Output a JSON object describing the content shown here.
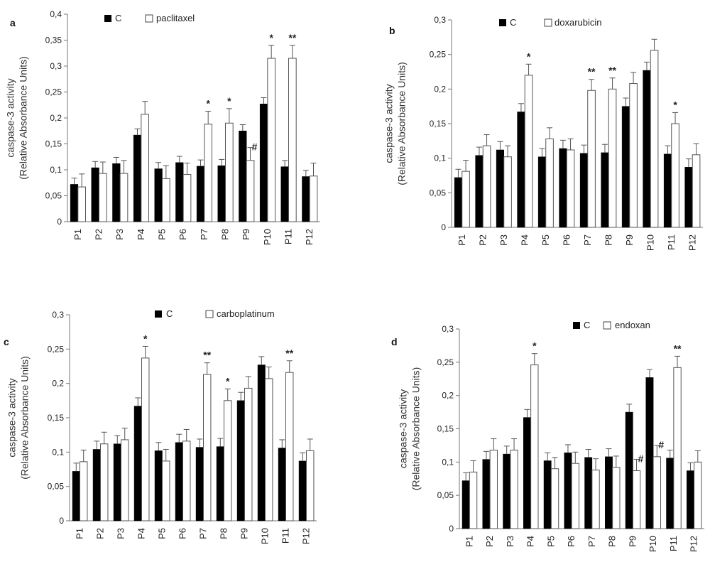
{
  "chart_data": [
    {
      "panel": "a",
      "type": "bar",
      "ylabel_line1": "caspase-3 activity",
      "ylabel_line2": "(Relative Absorbance Units)",
      "ylim": [
        0,
        0.4
      ],
      "yticks": [
        "0",
        "0,05",
        "0,1",
        "0,15",
        "0,2",
        "0,25",
        "0,3",
        "0,35",
        "0,4"
      ],
      "categories": [
        "P1",
        "P2",
        "P3",
        "P4",
        "P5",
        "P6",
        "P7",
        "P8",
        "P9",
        "P10",
        "P11",
        "P12"
      ],
      "series": [
        {
          "name": "C",
          "color": "#000000",
          "values": [
            0.072,
            0.104,
            0.112,
            0.167,
            0.102,
            0.114,
            0.107,
            0.108,
            0.175,
            0.227,
            0.106,
            0.087
          ],
          "errors": [
            0.012,
            0.012,
            0.012,
            0.012,
            0.012,
            0.012,
            0.012,
            0.012,
            0.012,
            0.012,
            0.012,
            0.012
          ]
        },
        {
          "name": "paclitaxel",
          "color": "#ffffff",
          "values": [
            0.067,
            0.093,
            0.093,
            0.207,
            0.083,
            0.091,
            0.188,
            0.19,
            0.118,
            0.315,
            0.315,
            0.088
          ],
          "errors": [
            0.025,
            0.022,
            0.025,
            0.025,
            0.025,
            0.022,
            0.025,
            0.028,
            0.025,
            0.025,
            0.025,
            0.025
          ]
        }
      ],
      "annotations": [
        {
          "category": "P7",
          "series": "paclitaxel",
          "text": "*"
        },
        {
          "category": "P8",
          "series": "paclitaxel",
          "text": "*"
        },
        {
          "category": "P9",
          "series": "paclitaxel",
          "text": "#"
        },
        {
          "category": "P10",
          "series": "paclitaxel",
          "text": "*"
        },
        {
          "category": "P11",
          "series": "paclitaxel",
          "text": "**"
        }
      ]
    },
    {
      "panel": "b",
      "type": "bar",
      "ylabel_line1": "caspase-3 activity",
      "ylabel_line2": "(Relative Absorbance Units)",
      "ylim": [
        0,
        0.3
      ],
      "yticks": [
        "0",
        "0,05",
        "0,1",
        "0,15",
        "0,2",
        "0,25",
        "0,3"
      ],
      "categories": [
        "P1",
        "P2",
        "P3",
        "P4",
        "P5",
        "P6",
        "P7",
        "P8",
        "P9",
        "P10",
        "P11",
        "P12"
      ],
      "series": [
        {
          "name": "C",
          "color": "#000000",
          "values": [
            0.072,
            0.104,
            0.112,
            0.167,
            0.102,
            0.114,
            0.107,
            0.108,
            0.175,
            0.227,
            0.106,
            0.087
          ],
          "errors": [
            0.012,
            0.012,
            0.012,
            0.012,
            0.012,
            0.012,
            0.012,
            0.012,
            0.012,
            0.012,
            0.012,
            0.012
          ]
        },
        {
          "name": "doxarubicin",
          "color": "#ffffff",
          "values": [
            0.081,
            0.118,
            0.102,
            0.22,
            0.128,
            0.112,
            0.198,
            0.2,
            0.208,
            0.256,
            0.15,
            0.105
          ],
          "errors": [
            0.016,
            0.016,
            0.016,
            0.016,
            0.016,
            0.016,
            0.016,
            0.016,
            0.016,
            0.016,
            0.016,
            0.016
          ]
        }
      ],
      "annotations": [
        {
          "category": "P4",
          "series": "doxarubicin",
          "text": "*"
        },
        {
          "category": "P7",
          "series": "doxarubicin",
          "text": "**"
        },
        {
          "category": "P8",
          "series": "doxarubicin",
          "text": "**"
        },
        {
          "category": "P11",
          "series": "doxarubicin",
          "text": "*"
        }
      ]
    },
    {
      "panel": "c",
      "type": "bar",
      "ylabel_line1": "caspase-3 activity",
      "ylabel_line2": "(Relative Absorbance Units)",
      "ylim": [
        0,
        0.3
      ],
      "yticks": [
        "0",
        "0,05",
        "0,1",
        "0,15",
        "0,2",
        "0,25",
        "0,3"
      ],
      "categories": [
        "P1",
        "P2",
        "P3",
        "P4",
        "P5",
        "P6",
        "P7",
        "P8",
        "P9",
        "P10",
        "P11",
        "P12"
      ],
      "series": [
        {
          "name": "C",
          "color": "#000000",
          "values": [
            0.072,
            0.104,
            0.112,
            0.167,
            0.102,
            0.114,
            0.107,
            0.108,
            0.175,
            0.227,
            0.106,
            0.087
          ],
          "errors": [
            0.012,
            0.012,
            0.012,
            0.012,
            0.012,
            0.012,
            0.012,
            0.012,
            0.012,
            0.012,
            0.012,
            0.012
          ]
        },
        {
          "name": "carboplatinum",
          "color": "#ffffff",
          "values": [
            0.086,
            0.112,
            0.118,
            0.237,
            0.087,
            0.116,
            0.213,
            0.175,
            0.193,
            0.207,
            0.216,
            0.102
          ],
          "errors": [
            0.017,
            0.017,
            0.017,
            0.017,
            0.017,
            0.017,
            0.017,
            0.017,
            0.017,
            0.017,
            0.017,
            0.017
          ]
        }
      ],
      "annotations": [
        {
          "category": "P4",
          "series": "carboplatinum",
          "text": "*"
        },
        {
          "category": "P7",
          "series": "carboplatinum",
          "text": "**"
        },
        {
          "category": "P8",
          "series": "carboplatinum",
          "text": "*"
        },
        {
          "category": "P11",
          "series": "carboplatinum",
          "text": "**"
        }
      ]
    },
    {
      "panel": "d",
      "type": "bar",
      "ylabel_line1": "caspase-3 activity",
      "ylabel_line2": "(Relative Absorbance Units)",
      "ylim": [
        0,
        0.3
      ],
      "yticks": [
        "0",
        "0,05",
        "0,1",
        "0,15",
        "0,2",
        "0,25",
        "0,3"
      ],
      "categories": [
        "P1",
        "P2",
        "P3",
        "P4",
        "P5",
        "P6",
        "P7",
        "P8",
        "P9",
        "P10",
        "P11",
        "P12"
      ],
      "series": [
        {
          "name": "C",
          "color": "#000000",
          "values": [
            0.072,
            0.104,
            0.112,
            0.167,
            0.102,
            0.114,
            0.107,
            0.108,
            0.175,
            0.227,
            0.106,
            0.087
          ],
          "errors": [
            0.012,
            0.012,
            0.012,
            0.012,
            0.012,
            0.012,
            0.012,
            0.012,
            0.012,
            0.012,
            0.012,
            0.012
          ]
        },
        {
          "name": "endoxan",
          "color": "#ffffff",
          "values": [
            0.085,
            0.118,
            0.118,
            0.246,
            0.09,
            0.098,
            0.088,
            0.092,
            0.087,
            0.108,
            0.242,
            0.1
          ],
          "errors": [
            0.017,
            0.017,
            0.017,
            0.017,
            0.017,
            0.017,
            0.017,
            0.017,
            0.017,
            0.017,
            0.017,
            0.017
          ]
        }
      ],
      "annotations": [
        {
          "category": "P4",
          "series": "endoxan",
          "text": "*"
        },
        {
          "category": "P9",
          "series": "endoxan",
          "text": "#"
        },
        {
          "category": "P10",
          "series": "endoxan",
          "text": "#"
        },
        {
          "category": "P11",
          "series": "endoxan",
          "text": "**"
        }
      ]
    }
  ]
}
